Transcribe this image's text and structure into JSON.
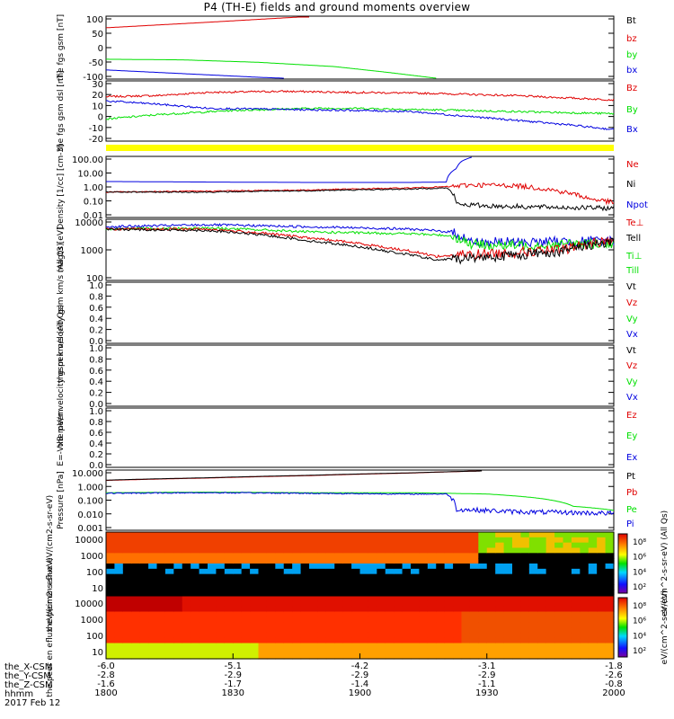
{
  "title": "P4 (TH-E) fields and ground moments overview",
  "footer": {
    "row_names": [
      "the_X-CSM",
      "the_Y-CSM",
      "the_Z-CSM",
      "hhmm"
    ],
    "date": "2017 Feb 12",
    "x_tick_values": [
      [
        "-6.0",
        "-5.1",
        "-4.2",
        "-3.1",
        "-1.8"
      ],
      [
        "-2.8",
        "-2.9",
        "-2.9",
        "-2.9",
        "-2.6"
      ],
      [
        "-1.6",
        "-1.7",
        "-1.4",
        "-1.1",
        "-0.8"
      ],
      [
        "1800",
        "1830",
        "1900",
        "1930",
        "2000"
      ]
    ]
  },
  "colors": {
    "red": "#e00000",
    "green": "#00e000",
    "blue": "#0000e0",
    "black": "#000000",
    "yellow": "#ffff00"
  },
  "chart_data": [
    {
      "type": "line",
      "ylabel": "the fgs gsm [nT]",
      "yticks": [
        "100",
        "50",
        "0",
        "-50",
        "-100"
      ],
      "ylim": [
        -100,
        100
      ],
      "legend": [
        "Bt",
        "bz",
        "by",
        "bx"
      ],
      "series": [
        {
          "name": "bz",
          "color": "red",
          "x": [
            0,
            0.2,
            0.4
          ],
          "y": [
            65,
            83,
            102
          ]
        },
        {
          "name": "by",
          "color": "green",
          "x": [
            0,
            0.15,
            0.3,
            0.45,
            0.55,
            0.65
          ],
          "y": [
            -38,
            -40,
            -48,
            -62,
            -80,
            -100
          ]
        },
        {
          "name": "bx",
          "color": "blue",
          "x": [
            0,
            0.15,
            0.3,
            0.35
          ],
          "y": [
            -73,
            -85,
            -97,
            -100
          ]
        }
      ]
    },
    {
      "type": "line",
      "ylabel": "the fgs gsm dsl [nT]",
      "yticks": [
        "30",
        "20",
        "10",
        "0",
        "-10",
        "-20"
      ],
      "ylim": [
        -25,
        30
      ],
      "legend": [
        "Bz",
        "By",
        "Bx"
      ],
      "series": [
        {
          "name": "Bz",
          "color": "red",
          "x": [
            0,
            0.1,
            0.2,
            0.35,
            0.5,
            0.65,
            0.8,
            0.9,
            1
          ],
          "y": [
            16,
            17,
            20,
            21,
            20,
            19,
            17,
            15,
            13
          ]
        },
        {
          "name": "By",
          "color": "green",
          "x": [
            0,
            0.1,
            0.25,
            0.4,
            0.5,
            0.6,
            0.7,
            0.8,
            0.9,
            1
          ],
          "y": [
            -5,
            -1,
            3,
            5,
            5,
            4,
            3,
            2,
            1,
            0
          ]
        },
        {
          "name": "Bx",
          "color": "blue",
          "x": [
            0,
            0.1,
            0.2,
            0.35,
            0.5,
            0.6,
            0.7,
            0.8,
            0.9,
            1
          ],
          "y": [
            12,
            9,
            5,
            4,
            3,
            2,
            -2,
            -6,
            -10,
            -15
          ]
        }
      ]
    },
    {
      "type": "line",
      "ylabel": "Density [1/cc] [cm-3]",
      "yticks": [
        "100.00",
        "10.00",
        "1.00",
        "0.10",
        "0.01"
      ],
      "ylim": [
        0.01,
        200
      ],
      "log": true,
      "legend": [
        "Ne",
        "Ni",
        "Npot"
      ],
      "series": [
        {
          "name": "Ne",
          "color": "red",
          "x": [
            0,
            0.2,
            0.4,
            0.6,
            0.68,
            0.72,
            0.8,
            0.85,
            0.9,
            0.95,
            1
          ],
          "y": [
            0.6,
            0.7,
            0.85,
            1.2,
            1.5,
            2.0,
            1.8,
            1.2,
            0.6,
            0.2,
            0.1
          ]
        },
        {
          "name": "Ni",
          "color": "blue",
          "x": [
            0,
            0.2,
            0.4,
            0.6,
            0.67,
            0.69,
            0.7,
            0.72
          ],
          "y": [
            3.5,
            3.2,
            3.0,
            3.0,
            3.2,
            30,
            100,
            200
          ]
        },
        {
          "name": "Npot",
          "color": "black",
          "x": [
            0,
            0.2,
            0.4,
            0.6,
            0.67,
            0.69,
            0.75,
            0.85,
            1
          ],
          "y": [
            0.6,
            0.6,
            0.75,
            1.0,
            1.2,
            0.08,
            0.06,
            0.05,
            0.04
          ]
        }
      ]
    },
    {
      "type": "line",
      "ylabel": "magt3 [eV]",
      "yticks": [
        "10000",
        "1000",
        "100"
      ],
      "ylim": [
        100,
        10000
      ],
      "log": true,
      "legend": [
        "Te⊥",
        "Tell",
        "Ti⊥",
        "Till"
      ],
      "series": [
        {
          "name": "Ti⊥",
          "color": "blue",
          "x": [
            0,
            0.2,
            0.4,
            0.6,
            0.68,
            0.72,
            0.8,
            1
          ],
          "y": [
            6000,
            7000,
            6000,
            5000,
            4000,
            1800,
            1800,
            2000
          ]
        },
        {
          "name": "Till",
          "color": "green",
          "x": [
            0,
            0.2,
            0.4,
            0.6,
            0.68,
            0.72,
            0.8,
            1
          ],
          "y": [
            5000,
            5500,
            4000,
            3500,
            3000,
            1500,
            1400,
            1700
          ]
        },
        {
          "name": "Te⊥",
          "color": "red",
          "x": [
            0,
            0.2,
            0.4,
            0.55,
            0.65,
            0.72,
            0.8,
            0.9,
            1
          ],
          "y": [
            5000,
            5000,
            2500,
            1200,
            600,
            700,
            800,
            1000,
            2200
          ]
        },
        {
          "name": "Tell",
          "color": "black",
          "x": [
            0,
            0.2,
            0.4,
            0.55,
            0.65,
            0.72,
            0.8,
            0.9,
            1
          ],
          "y": [
            5000,
            4500,
            2000,
            900,
            450,
            550,
            650,
            900,
            2000
          ]
        }
      ]
    },
    {
      "type": "line",
      "ylabel": "the peir velocity gsm km/s (All Qs)",
      "yticks": [
        "1.0",
        "0.8",
        "0.6",
        "0.4",
        "0.2",
        "0.0"
      ],
      "ylim": [
        0,
        1
      ],
      "legend": [
        "Vt",
        "Vz",
        "Vy",
        "Vx"
      ],
      "series": []
    },
    {
      "type": "line",
      "ylabel": "the peer velocity gsm km/s (All Qs)",
      "yticks": [
        "1.0",
        "0.8",
        "0.6",
        "0.4",
        "0.2",
        "0.0"
      ],
      "ylim": [
        0,
        1
      ],
      "legend": [
        "Vt",
        "Vz",
        "Vy",
        "Vx"
      ],
      "series": []
    },
    {
      "type": "line",
      "ylabel": "E=-VxB mV/m",
      "yticks": [
        "1.0",
        "0.8",
        "0.6",
        "0.4",
        "0.2",
        "0.0"
      ],
      "ylim": [
        0,
        1
      ],
      "legend": [
        "Ez",
        "Ey",
        "Ex"
      ],
      "series": []
    },
    {
      "type": "line",
      "ylabel": "Pressure [nPa]",
      "yticks": [
        "10.000",
        "1.000",
        "0.100",
        "0.010",
        "0.001"
      ],
      "ylim": [
        0.001,
        20
      ],
      "log": true,
      "legend": [
        "Pt",
        "Pb",
        "Pe",
        "Pi"
      ],
      "series": [
        {
          "name": "Pb",
          "color": "red",
          "x": [
            0,
            0.2,
            0.4,
            0.6,
            0.74
          ],
          "y": [
            4,
            6,
            9,
            14,
            20
          ]
        },
        {
          "name": "Pt",
          "color": "black",
          "x": [
            0,
            0.2,
            0.4,
            0.6,
            0.74
          ],
          "y": [
            4.2,
            6.3,
            9.5,
            14.5,
            20
          ]
        },
        {
          "name": "Pe",
          "color": "green",
          "x": [
            0,
            0.2,
            0.4,
            0.6,
            0.75,
            0.85,
            0.92,
            1
          ],
          "y": [
            0.5,
            0.55,
            0.5,
            0.5,
            0.4,
            0.2,
            0.05,
            0.025
          ]
        },
        {
          "name": "Pi",
          "color": "blue",
          "x": [
            0,
            0.2,
            0.4,
            0.6,
            0.67,
            0.69,
            0.8,
            1
          ],
          "y": [
            0.45,
            0.5,
            0.45,
            0.4,
            0.4,
            0.03,
            0.02,
            0.015
          ]
        }
      ]
    },
    {
      "type": "heatmap",
      "ylabel": "the peir en eflux eV/(cm2-s-sr-eV)",
      "yticks": [
        "10000",
        "1000",
        "100",
        "10"
      ],
      "colorbar_label": "eV/(cm^2-s-sr-eV) (All Qs)",
      "colorbar_ticks": [
        "10⁸",
        "10⁶",
        "10⁴",
        "10²"
      ]
    },
    {
      "type": "heatmap",
      "ylabel": "the peer en eflux eV/(cm2-s-sr-eV)",
      "yticks": [
        "10000",
        "1000",
        "100",
        "10"
      ],
      "colorbar_label": "eV/(cm^2-s-sr-eV)",
      "colorbar_ticks": [
        "10⁸",
        "10⁶",
        "10⁴",
        "10²"
      ]
    }
  ]
}
